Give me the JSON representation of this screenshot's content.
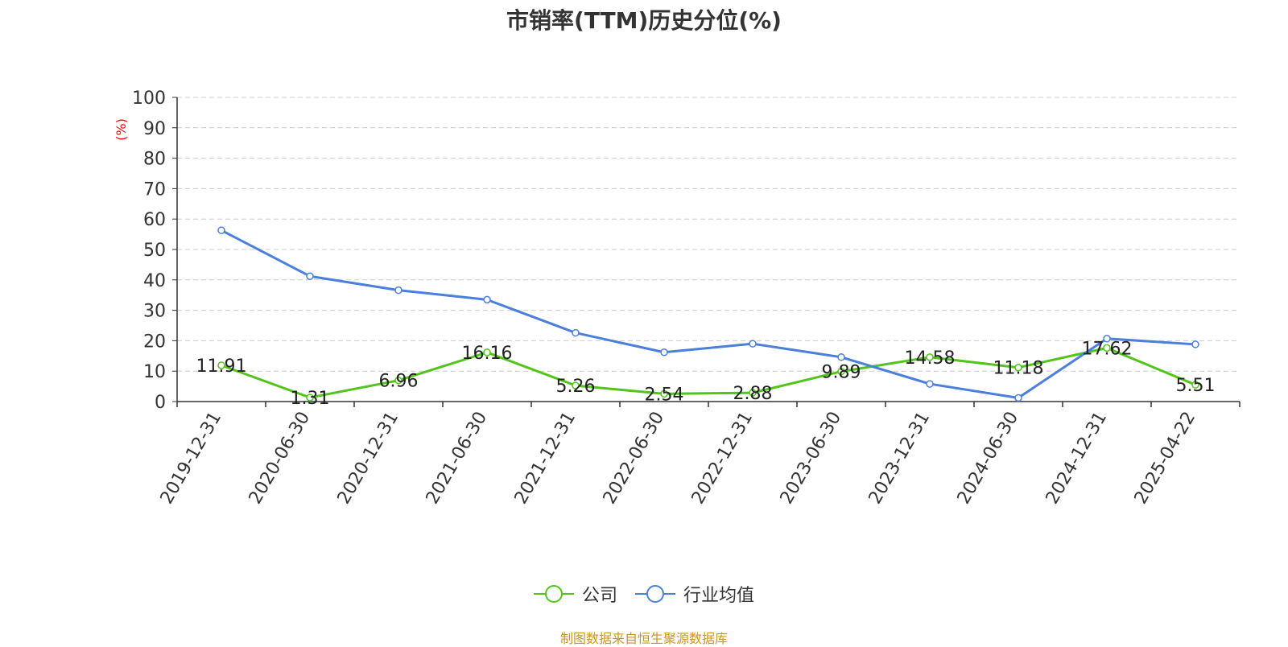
{
  "chart_data": {
    "type": "line",
    "title": "市销率(TTM)历史分位(%)",
    "ylabel": "(%)",
    "xlabel": "",
    "ylim": [
      0,
      100
    ],
    "yticks": [
      0,
      10,
      20,
      30,
      40,
      50,
      60,
      70,
      80,
      90,
      100
    ],
    "grid": true,
    "legend_position": "bottom",
    "x": [
      "2019-12-31",
      "2020-06-30",
      "2020-12-31",
      "2021-06-30",
      "2021-12-31",
      "2022-06-30",
      "2022-12-31",
      "2023-06-30",
      "2023-12-31",
      "2024-06-30",
      "2024-12-31",
      "2025-04-22"
    ],
    "series": [
      {
        "name": "公司",
        "color": "#52c41a",
        "values": [
          11.91,
          1.31,
          6.96,
          16.16,
          5.26,
          2.54,
          2.88,
          9.89,
          14.58,
          11.18,
          17.62,
          5.51
        ],
        "data_labels": [
          "11.91",
          "1.31",
          "6.96",
          "16.16",
          "5.26",
          "2.54",
          "2.88",
          "9.89",
          "14.58",
          "11.18",
          "17.62",
          "5.51"
        ]
      },
      {
        "name": "行业均值",
        "color": "#4a7fdb",
        "values": [
          56.3,
          41.2,
          36.6,
          33.5,
          22.6,
          16.2,
          19.0,
          14.6,
          5.8,
          1.2,
          20.7,
          18.8
        ]
      }
    ]
  },
  "footer": {
    "source": "制图数据来自恒生聚源数据库"
  }
}
